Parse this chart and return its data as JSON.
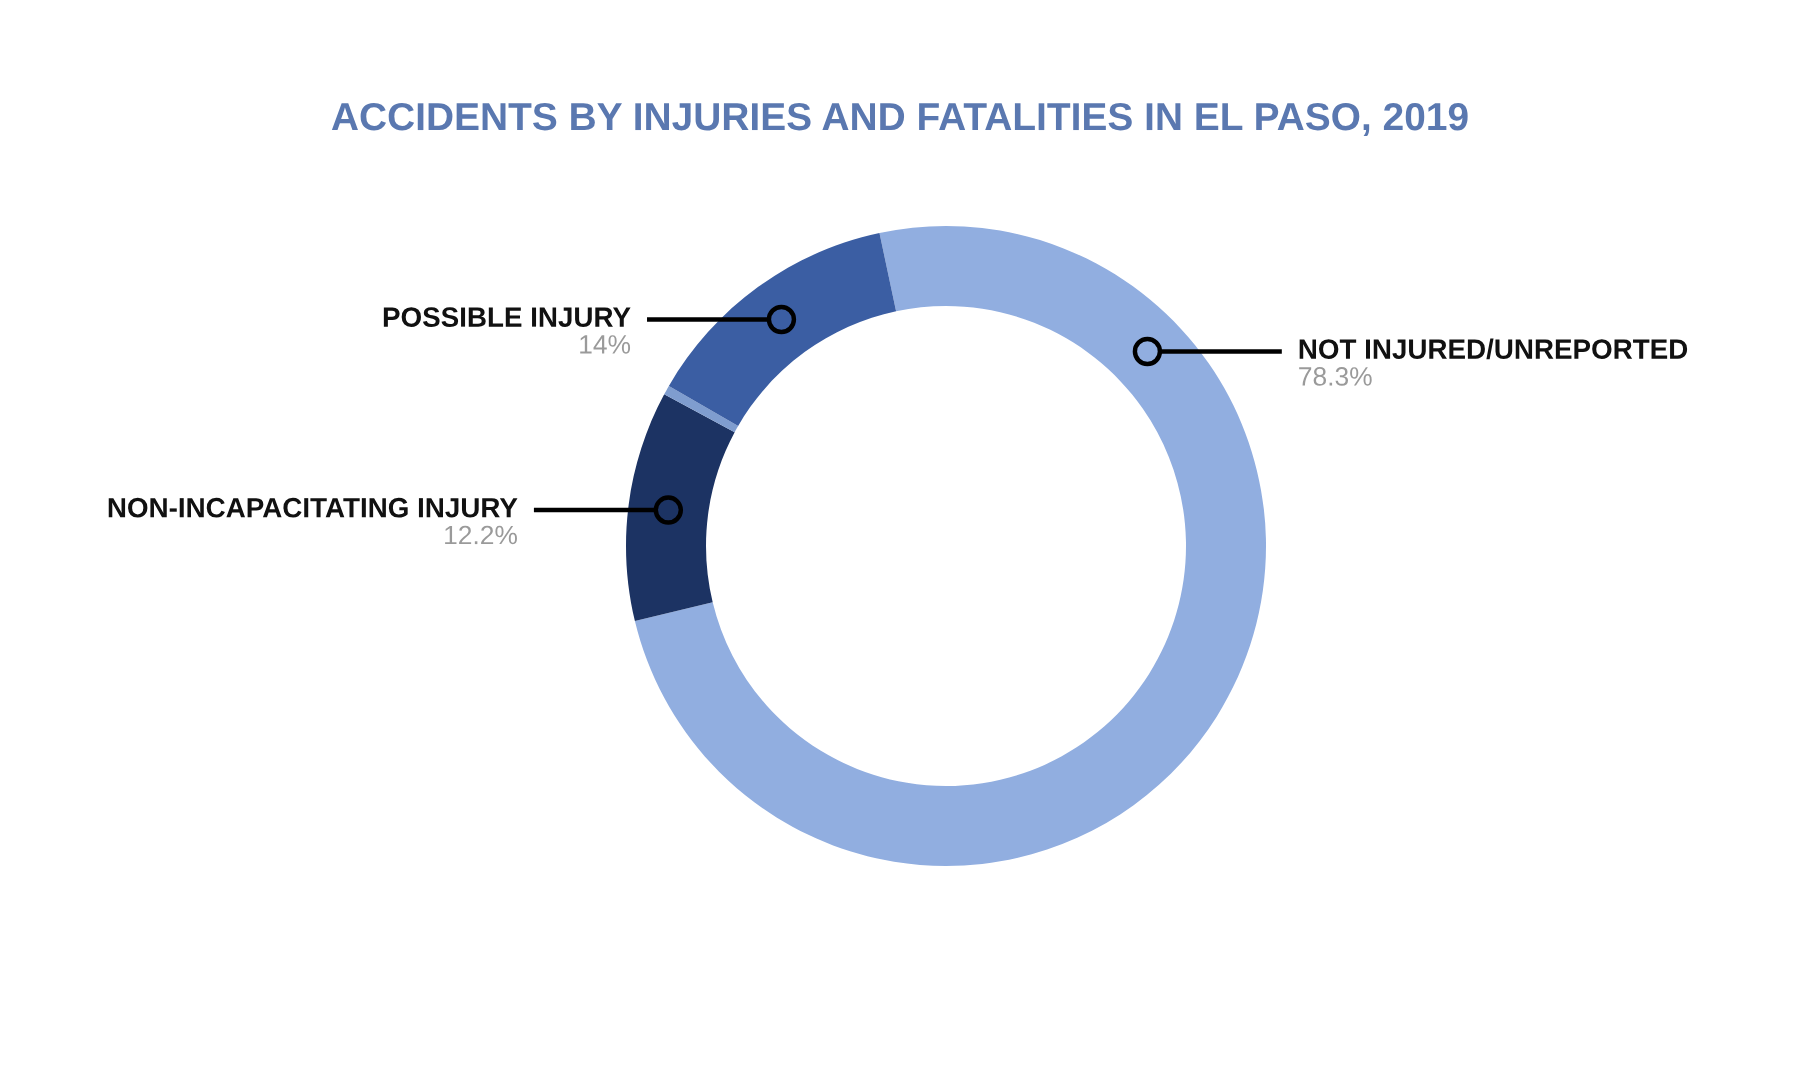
{
  "chart_data": {
    "type": "donut",
    "title": "ACCIDENTS BY INJURIES AND FATALITIES IN EL PASO, 2019",
    "categories": [
      "NOT INJURED/UNREPORTED",
      "NON-INCAPACITATING INJURY",
      null,
      "POSSIBLE INJURY"
    ],
    "values": [
      78.3,
      12.2,
      0.5,
      14
    ],
    "value_labels": [
      "78.3%",
      "12.2%",
      null,
      "14%"
    ],
    "colors": [
      "#91aee0",
      "#1c3363",
      "#7f9dcf",
      "#3b5ea3"
    ]
  }
}
